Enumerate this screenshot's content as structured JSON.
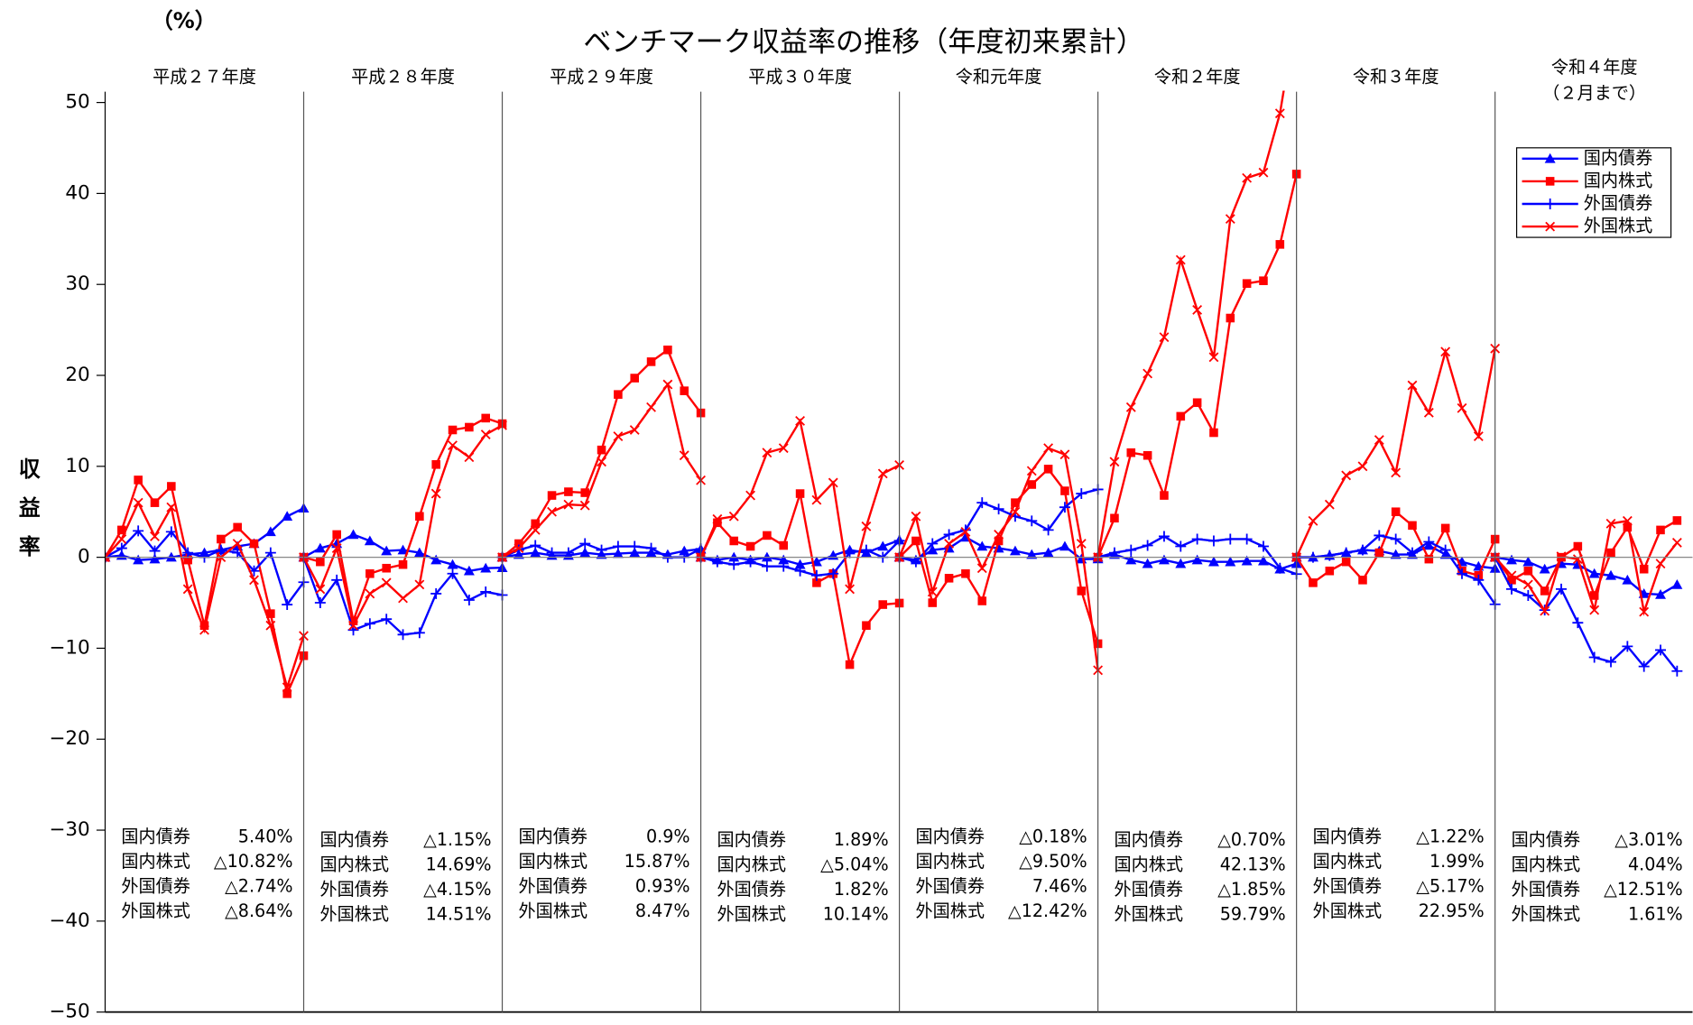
{
  "chart_data": {
    "type": "line",
    "title": "ベンチマーク収益率の推移（年度初来累計）",
    "unit": "（%）",
    "ylabel": "収益率",
    "ylim": [
      -50,
      50
    ],
    "yticks": [
      {
        "value": -50,
        "label": "−50"
      },
      {
        "value": -40,
        "label": "−40"
      },
      {
        "value": -30,
        "label": "−30"
      },
      {
        "value": -20,
        "label": "−20"
      },
      {
        "value": -10,
        "label": "−10"
      },
      0,
      10,
      20,
      30,
      40,
      50
    ],
    "legend": "top-right",
    "periods": [
      {
        "label": "平成２７年度",
        "summary": [
          [
            "国内債券",
            "5.40%"
          ],
          [
            "国内株式",
            "△10.82%"
          ],
          [
            "外国債券",
            "△2.74%"
          ],
          [
            "外国株式",
            "△8.64%"
          ]
        ]
      },
      {
        "label": "平成２８年度",
        "summary": [
          [
            "国内債券",
            "△1.15%"
          ],
          [
            "国内株式",
            "14.69%"
          ],
          [
            "外国債券",
            "△4.15%"
          ],
          [
            "外国株式",
            "14.51%"
          ]
        ]
      },
      {
        "label": "平成２９年度",
        "summary": [
          [
            "国内債券",
            "0.9%"
          ],
          [
            "国内株式",
            "15.87%"
          ],
          [
            "外国債券",
            "0.93%"
          ],
          [
            "外国株式",
            "8.47%"
          ]
        ]
      },
      {
        "label": "平成３０年度",
        "summary": [
          [
            "国内債券",
            "1.89%"
          ],
          [
            "国内株式",
            "△5.04%"
          ],
          [
            "外国債券",
            "1.82%"
          ],
          [
            "外国株式",
            "10.14%"
          ]
        ]
      },
      {
        "label": "令和元年度",
        "summary": [
          [
            "国内債券",
            "△0.18%"
          ],
          [
            "国内株式",
            "△9.50%"
          ],
          [
            "外国債券",
            "7.46%"
          ],
          [
            "外国株式",
            "△12.42%"
          ]
        ]
      },
      {
        "label": "令和２年度",
        "summary": [
          [
            "国内債券",
            "△0.70%"
          ],
          [
            "国内株式",
            "42.13%"
          ],
          [
            "外国債券",
            "△1.85%"
          ],
          [
            "外国株式",
            "59.79%"
          ]
        ]
      },
      {
        "label": "令和３年度",
        "summary": [
          [
            "国内債券",
            "△1.22%"
          ],
          [
            "国内株式",
            "1.99%"
          ],
          [
            "外国債券",
            "△5.17%"
          ],
          [
            "外国株式",
            "22.95%"
          ]
        ]
      },
      {
        "label": "令和４年度",
        "note": "（２月まで）",
        "summary": [
          [
            "国内債券",
            "△3.01%"
          ],
          [
            "国内株式",
            "4.04%"
          ],
          [
            "外国債券",
            "△12.51%"
          ],
          [
            "外国株式",
            "1.61%"
          ]
        ]
      }
    ],
    "series": [
      {
        "name": "国内債券",
        "color": "#0000ff",
        "marker": "triangle",
        "values": [
          [
            0,
            0.2,
            -0.3,
            -0.2,
            0,
            0.3,
            0.5,
            0.8,
            1.2,
            1.5,
            2.8,
            4.5,
            5.4
          ],
          [
            0,
            1,
            1.5,
            2.5,
            1.8,
            0.7,
            0.8,
            0.5,
            -0.3,
            -0.8,
            -1.5,
            -1.2,
            -1.15
          ],
          [
            0,
            0.3,
            0.5,
            0.2,
            0.2,
            0.5,
            0.3,
            0.4,
            0.5,
            0.5,
            0.3,
            0.7,
            0.9
          ],
          [
            0,
            -0.3,
            0,
            -0.3,
            0,
            -0.3,
            -0.8,
            -0.5,
            0.2,
            0.8,
            0.5,
            1.2,
            1.89
          ],
          [
            0,
            -0.3,
            0.8,
            1,
            2.2,
            1.2,
            1,
            0.7,
            0.3,
            0.5,
            1.2,
            -0.2,
            -0.18
          ],
          [
            0,
            0.3,
            -0.3,
            -0.7,
            -0.3,
            -0.7,
            -0.3,
            -0.5,
            -0.5,
            -0.4,
            -0.4,
            -1.3,
            -0.7
          ],
          [
            0,
            0,
            0.2,
            0.5,
            0.8,
            0.7,
            0.3,
            0.3,
            1.3,
            0.3,
            -0.5,
            -1,
            -1.22
          ],
          [
            0,
            -0.3,
            -0.5,
            -1.3,
            -0.7,
            -0.8,
            -1.8,
            -2,
            -2.5,
            -4,
            -4.1,
            -3.01
          ]
        ]
      },
      {
        "name": "国内株式",
        "color": "#ff0000",
        "marker": "square",
        "values": [
          [
            0,
            3,
            8.5,
            6,
            7.8,
            -0.3,
            -7.5,
            2,
            3.3,
            1.5,
            -6.2,
            -15,
            -10.82
          ],
          [
            0,
            -0.5,
            2.5,
            -7,
            -1.8,
            -1.2,
            -0.8,
            4.5,
            10.2,
            14,
            14.3,
            15.3,
            14.69
          ],
          [
            0,
            1.5,
            3.7,
            6.8,
            7.2,
            7.1,
            11.8,
            17.9,
            19.7,
            21.5,
            22.8,
            18.3,
            15.87
          ],
          [
            0,
            3.8,
            1.8,
            1.2,
            2.4,
            1.3,
            7,
            -2.8,
            -1.8,
            -11.8,
            -7.5,
            -5.2,
            -5.04
          ],
          [
            0,
            1.8,
            -5,
            -2.3,
            -1.8,
            -4.8,
            1.8,
            6,
            8,
            9.7,
            7.3,
            -3.7,
            -9.5
          ],
          [
            0,
            4.3,
            11.5,
            11.2,
            6.8,
            15.5,
            17,
            13.7,
            26.3,
            30.1,
            30.4,
            34.4,
            42.13
          ],
          [
            0,
            -2.8,
            -1.5,
            -0.5,
            -2.5,
            0.5,
            5,
            3.5,
            -0.2,
            3.2,
            -1.5,
            -2,
            1.99
          ],
          [
            0,
            -2.5,
            -1.5,
            -3.7,
            0,
            1.2,
            -4.2,
            0.5,
            3.3,
            -1.3,
            3,
            4.04
          ]
        ]
      },
      {
        "name": "外国債券",
        "color": "#0000ff",
        "marker": "plus",
        "values": [
          [
            0,
            1,
            2.9,
            0.7,
            2.8,
            0.5,
            0,
            0.8,
            0.5,
            -1.5,
            0.5,
            -5.2,
            -2.74
          ],
          [
            0,
            -5,
            -2.5,
            -8,
            -7.3,
            -6.8,
            -8.5,
            -8.3,
            -4,
            -1.8,
            -4.7,
            -3.8,
            -4.15
          ],
          [
            0,
            0.8,
            1.3,
            0.5,
            0.5,
            1.5,
            0.8,
            1.2,
            1.2,
            1,
            0,
            0,
            0.93
          ],
          [
            0,
            -0.5,
            -0.8,
            -0.5,
            -1,
            -1,
            -1.5,
            -2,
            -1.8,
            0.5,
            0.8,
            0,
            1.82
          ],
          [
            0,
            -0.5,
            1.5,
            2.5,
            3,
            6,
            5.3,
            4.5,
            4,
            3,
            5.5,
            7,
            7.46
          ],
          [
            0,
            0.5,
            0.8,
            1.3,
            2.3,
            1.2,
            2,
            1.8,
            2,
            2,
            1.2,
            -1.2,
            -1.85
          ],
          [
            0,
            0,
            0.2,
            0.5,
            0.8,
            2.4,
            2,
            0.5,
            1.7,
            0.8,
            -1.8,
            -2.5,
            -5.17
          ],
          [
            0,
            -3.5,
            -4.2,
            -5.8,
            -3.5,
            -7.2,
            -11,
            -11.5,
            -9.8,
            -12,
            -10.2,
            -12.51
          ]
        ]
      },
      {
        "name": "外国株式",
        "color": "#ff0000",
        "marker": "x",
        "values": [
          [
            0,
            2,
            6,
            2.3,
            5.5,
            -3.5,
            -8,
            0,
            1.5,
            -2.5,
            -7.5,
            -14.3,
            -8.64
          ],
          [
            0,
            -3.5,
            1,
            -7.5,
            -4,
            -2.8,
            -4.5,
            -3,
            7,
            12.3,
            11,
            13.5,
            14.51
          ],
          [
            0,
            1,
            3,
            5,
            5.8,
            5.7,
            10.5,
            13.3,
            14,
            16.5,
            19,
            11.2,
            8.47
          ],
          [
            0,
            4.2,
            4.5,
            6.8,
            11.5,
            12,
            15,
            6.3,
            8.2,
            -3.5,
            3.4,
            9.2,
            10.14
          ],
          [
            0,
            4.5,
            -3.8,
            1.5,
            2.8,
            -1.2,
            2.5,
            5,
            9.5,
            12,
            11.3,
            1.5,
            -12.42
          ],
          [
            0,
            10.5,
            16.5,
            20.2,
            24.2,
            32.7,
            27.2,
            22,
            37.2,
            41.7,
            42.3,
            48.8,
            59.79
          ],
          [
            0,
            4,
            5.8,
            9,
            10,
            12.9,
            9.3,
            18.9,
            15.9,
            22.6,
            16.4,
            13.3,
            22.95
          ],
          [
            0,
            -2,
            -3,
            -5.9,
            0.1,
            -0.2,
            -5.8,
            3.7,
            4,
            -6,
            -0.7,
            1.61
          ]
        ]
      }
    ]
  }
}
